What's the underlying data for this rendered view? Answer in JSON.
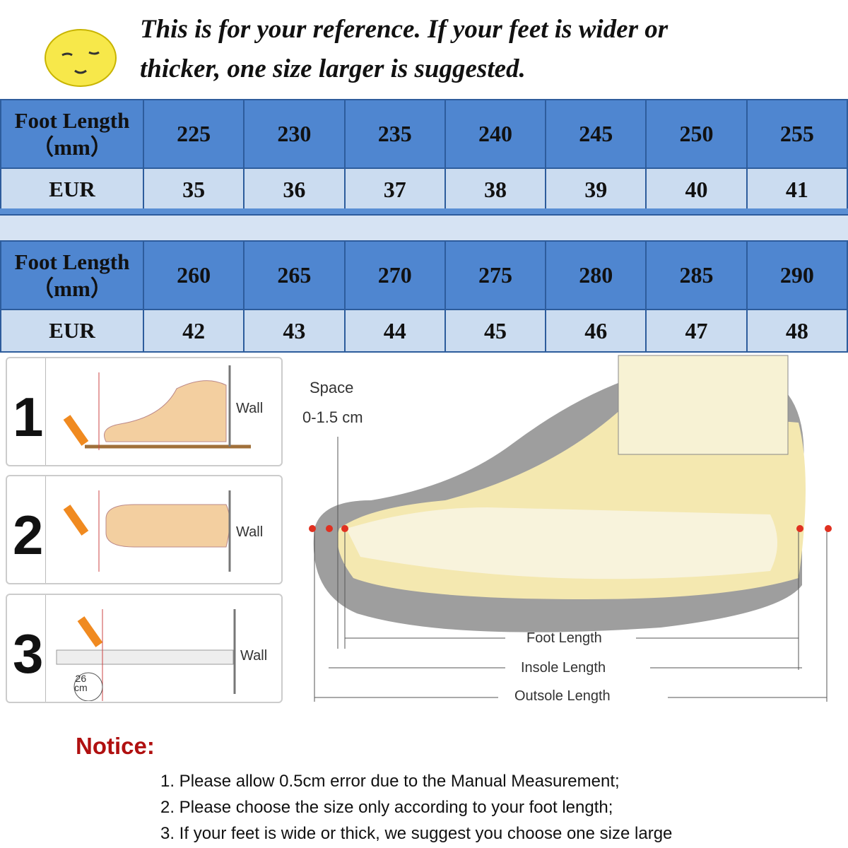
{
  "headline": {
    "line1": "This is for your reference. If your feet is wider or",
    "line2": "thicker, one size larger is suggested."
  },
  "table1": {
    "row_label": "Foot Length",
    "row_unit": "（mm）",
    "eur_label": "EUR",
    "lengths": [
      "225",
      "230",
      "235",
      "240",
      "245",
      "250",
      "255"
    ],
    "eur": [
      "35",
      "36",
      "37",
      "38",
      "39",
      "40",
      "41"
    ]
  },
  "table2": {
    "row_label": "Foot Length",
    "row_unit": "（mm）",
    "eur_label": "EUR",
    "lengths": [
      "260",
      "265",
      "270",
      "275",
      "280",
      "285",
      "290"
    ],
    "eur": [
      "42",
      "43",
      "44",
      "45",
      "46",
      "47",
      "48"
    ]
  },
  "steps": [
    {
      "num": "1",
      "wall": "Wall"
    },
    {
      "num": "2",
      "wall": "Wall"
    },
    {
      "num": "3",
      "wall": "Wall",
      "ruler": "26",
      "ruler_unit": "cm"
    }
  ],
  "diagram": {
    "space": "Space",
    "space_range": "0-1.5 cm",
    "foot_length": "Foot Length",
    "insole_length": "Insole Length",
    "outsole_length": "Outsole Length"
  },
  "notice": {
    "title": "Notice:",
    "items": [
      "1. Please allow 0.5cm error due to the Manual Measurement;",
      "2. Please choose the size only according to your foot length;",
      "3. If your feet is wide or thick, we suggest you choose one size large"
    ]
  },
  "colors": {
    "header_blue": "#4f86d0",
    "row_light": "#cbdcf0",
    "notice_red": "#b01010",
    "smiley": "#f7e84a"
  }
}
